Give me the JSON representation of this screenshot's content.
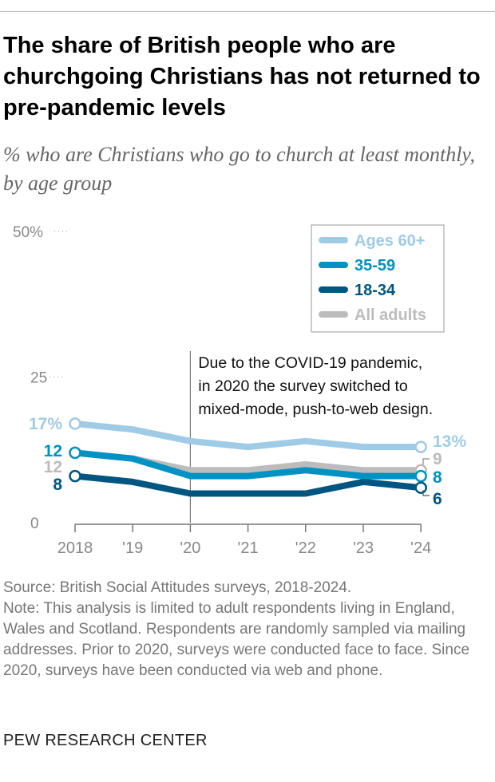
{
  "title": "The share of British people who are churchgoing Christians has not returned to pre-pandemic levels",
  "subtitle": "% who are Christians who go to church at least monthly, by age group",
  "annotation": [
    "Due to the COVID-19 pandemic,",
    "in 2020 the survey switched to",
    "mixed-mode, push-to-web design."
  ],
  "source": "Source: British Social Attitudes surveys, 2018-2024.",
  "note": "Note: This analysis is limited to adult respondents living in England, Wales and Scotland. Respondents are randomly sampled via mailing addresses. Prior to 2020, surveys were conducted face to face. Since 2020, surveys have been conducted via web and phone.",
  "logo": "PEW RESEARCH CENTER",
  "chart_data": {
    "type": "line",
    "categories": [
      "2018",
      "'19",
      "'20",
      "'21",
      "'22",
      "'23",
      "'24"
    ],
    "ylim": [
      0,
      50
    ],
    "yticks": [
      {
        "v": 0,
        "label": "0"
      },
      {
        "v": 25,
        "label": "25"
      },
      {
        "v": 50,
        "label": "50%"
      }
    ],
    "legend_position": "top-right",
    "series": [
      {
        "name": "Ages 60+",
        "color": "#9fcbe6",
        "values": [
          17,
          16,
          14,
          13,
          14,
          13,
          13
        ],
        "start_label": "17%",
        "end_label": "13%"
      },
      {
        "name": "35-59",
        "color": "#0092c2",
        "values": [
          12,
          11,
          8,
          8,
          9,
          8,
          8
        ],
        "start_label": "12",
        "end_label": "8"
      },
      {
        "name": "18-34",
        "color": "#005680",
        "values": [
          8,
          7,
          5,
          5,
          5,
          7,
          6
        ],
        "start_label": "8",
        "end_label": "6"
      },
      {
        "name": "All adults",
        "color": "#bcbcbc",
        "values": [
          12,
          11,
          9,
          9,
          10,
          9,
          9
        ],
        "start_label": "12",
        "end_label": "9"
      }
    ]
  }
}
